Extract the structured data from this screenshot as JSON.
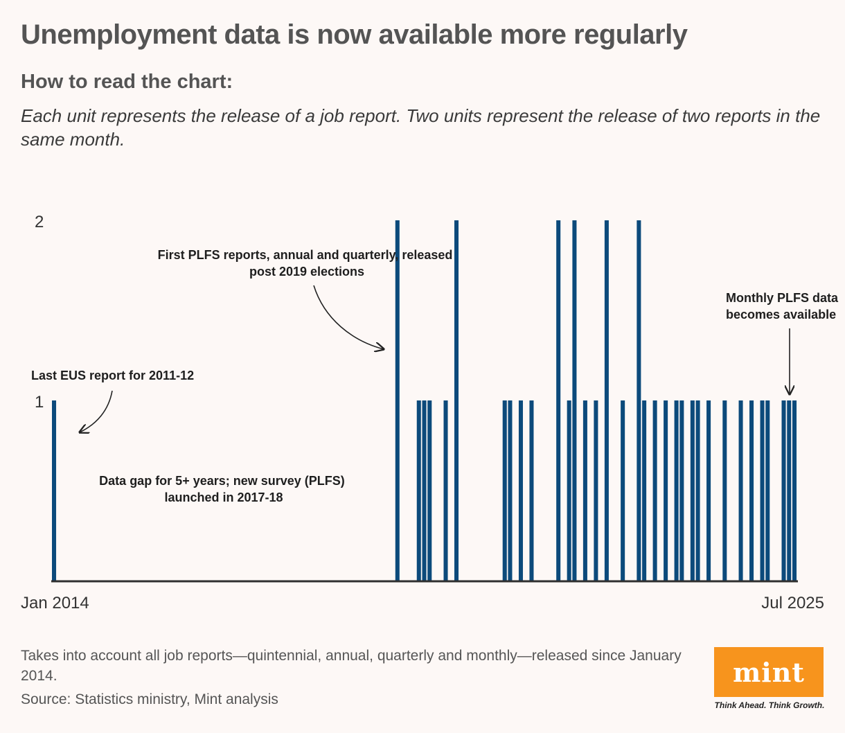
{
  "header": {
    "title": "Unemployment data is now available more regularly",
    "subtitle": "How to read the chart:",
    "description": "Each unit represents the release of a job report. Two units represent the release of two reports in the same month."
  },
  "chart_data": {
    "type": "bar",
    "x_start": "Jan 2014",
    "x_end": "Jul 2025",
    "x_tick_labels": [
      "Jan 2014",
      "Jul 2025"
    ],
    "y_tick_labels": [
      "1",
      "2"
    ],
    "ylim": [
      0,
      2
    ],
    "grid": false,
    "bar_color": "#0c4a7b",
    "releases": [
      {
        "month": "2014-01",
        "reports": 1
      },
      {
        "month": "2019-05",
        "reports": 2
      },
      {
        "month": "2019-09",
        "reports": 1
      },
      {
        "month": "2019-10",
        "reports": 1
      },
      {
        "month": "2019-11",
        "reports": 1
      },
      {
        "month": "2020-02",
        "reports": 1
      },
      {
        "month": "2020-04",
        "reports": 2
      },
      {
        "month": "2021-01",
        "reports": 1
      },
      {
        "month": "2021-02",
        "reports": 1
      },
      {
        "month": "2021-04",
        "reports": 1
      },
      {
        "month": "2021-06",
        "reports": 1
      },
      {
        "month": "2021-11",
        "reports": 2
      },
      {
        "month": "2022-01",
        "reports": 1
      },
      {
        "month": "2022-02",
        "reports": 2
      },
      {
        "month": "2022-04",
        "reports": 1
      },
      {
        "month": "2022-06",
        "reports": 1
      },
      {
        "month": "2022-08",
        "reports": 2
      },
      {
        "month": "2022-11",
        "reports": 1
      },
      {
        "month": "2023-02",
        "reports": 2
      },
      {
        "month": "2023-03",
        "reports": 1
      },
      {
        "month": "2023-05",
        "reports": 1
      },
      {
        "month": "2023-07",
        "reports": 1
      },
      {
        "month": "2023-09",
        "reports": 1
      },
      {
        "month": "2023-10",
        "reports": 1
      },
      {
        "month": "2023-12",
        "reports": 1
      },
      {
        "month": "2024-01",
        "reports": 1
      },
      {
        "month": "2024-03",
        "reports": 1
      },
      {
        "month": "2024-06",
        "reports": 1
      },
      {
        "month": "2024-09",
        "reports": 1
      },
      {
        "month": "2024-11",
        "reports": 1
      },
      {
        "month": "2025-01",
        "reports": 1
      },
      {
        "month": "2025-02",
        "reports": 1
      },
      {
        "month": "2025-05",
        "reports": 1
      },
      {
        "month": "2025-06",
        "reports": 1
      },
      {
        "month": "2025-07",
        "reports": 1
      }
    ],
    "annotations": [
      {
        "id": "eus",
        "lines": [
          "Last EUS report for 2011-12"
        ]
      },
      {
        "id": "gap",
        "lines": [
          "Data gap for 5+ years; new survey (PLFS)",
          "launched in 2017-18"
        ]
      },
      {
        "id": "plfs",
        "lines": [
          "First PLFS reports, annual and quarterly, released",
          "post 2019 elections"
        ]
      },
      {
        "id": "monthly",
        "lines": [
          "Monthly PLFS data",
          "becomes available"
        ]
      }
    ]
  },
  "footer": {
    "note": "Takes into account all job reports—quintennial, annual, quarterly and monthly—released since January 2014.",
    "source": "Source: Statistics ministry, Mint analysis",
    "logo_text": "mint",
    "tagline": "Think Ahead. Think Growth."
  },
  "colors": {
    "background": "#fdf8f6",
    "bar": "#0c4a7b",
    "logo": "#f7941d",
    "title": "#545454"
  }
}
